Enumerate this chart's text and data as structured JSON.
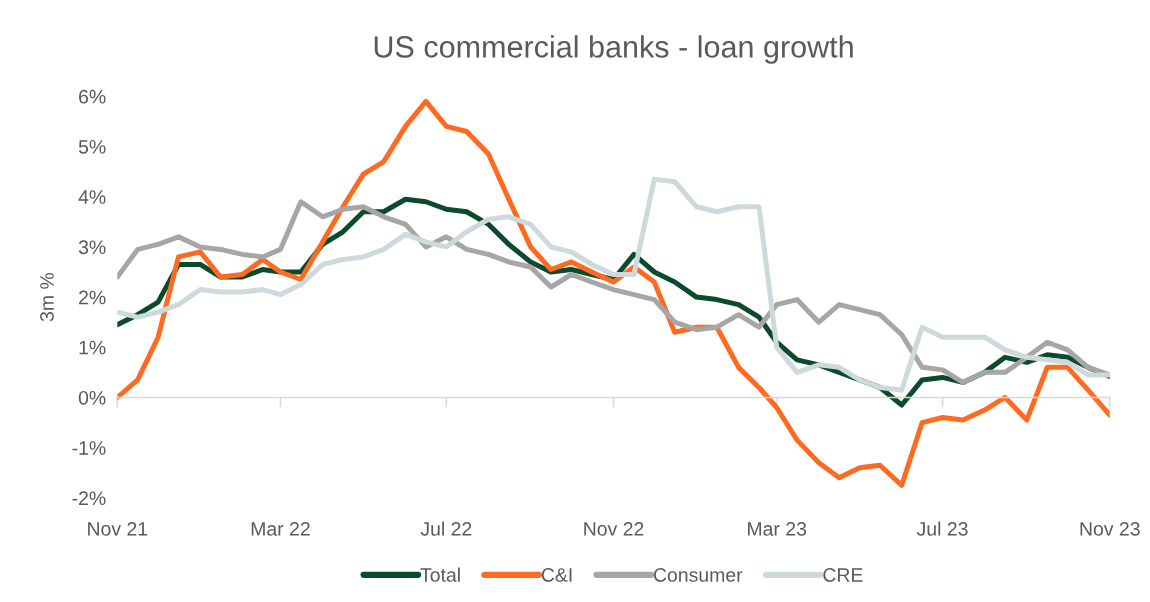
{
  "chart_data": {
    "type": "line",
    "title": "US commercial banks - loan growth",
    "ylabel": "3m %",
    "x": [
      "2021-11-01",
      "2021-11-16",
      "2021-12-01",
      "2021-12-16",
      "2022-01-01",
      "2022-01-16",
      "2022-02-01",
      "2022-02-16",
      "2022-03-01",
      "2022-03-16",
      "2022-04-01",
      "2022-04-16",
      "2022-05-01",
      "2022-05-16",
      "2022-06-01",
      "2022-06-16",
      "2022-07-01",
      "2022-07-16",
      "2022-08-01",
      "2022-08-16",
      "2022-09-01",
      "2022-09-16",
      "2022-10-01",
      "2022-10-16",
      "2022-11-01",
      "2022-11-16",
      "2022-12-01",
      "2022-12-16",
      "2023-01-01",
      "2023-01-16",
      "2023-02-01",
      "2023-02-16",
      "2023-03-01",
      "2023-03-16",
      "2023-04-01",
      "2023-04-16",
      "2023-05-01",
      "2023-05-16",
      "2023-06-01",
      "2023-06-16",
      "2023-07-01",
      "2023-07-16",
      "2023-08-01",
      "2023-08-16",
      "2023-09-01",
      "2023-09-16",
      "2023-10-01",
      "2023-10-16",
      "2023-11-01"
    ],
    "series": [
      {
        "name": "Total",
        "color": "#0b4a2a",
        "values": [
          1.45,
          1.65,
          1.9,
          2.65,
          2.65,
          2.4,
          2.4,
          2.55,
          2.5,
          2.5,
          3.05,
          3.3,
          3.7,
          3.7,
          3.95,
          3.9,
          3.75,
          3.7,
          3.45,
          3.05,
          2.7,
          2.5,
          2.55,
          2.45,
          2.35,
          2.85,
          2.5,
          2.3,
          2.0,
          1.95,
          1.85,
          1.6,
          1.1,
          0.75,
          0.65,
          0.5,
          0.35,
          0.2,
          -0.15,
          0.35,
          0.4,
          0.3,
          0.5,
          0.8,
          0.7,
          0.85,
          0.8,
          0.6,
          0.42
        ]
      },
      {
        "name": "C&I",
        "color": "#ff6a21",
        "values": [
          0.0,
          0.35,
          1.2,
          2.8,
          2.9,
          2.4,
          2.45,
          2.75,
          2.5,
          2.35,
          3.1,
          3.8,
          4.45,
          4.7,
          5.4,
          5.9,
          5.4,
          5.3,
          4.85,
          3.95,
          3.0,
          2.55,
          2.7,
          2.5,
          2.3,
          2.6,
          2.3,
          1.3,
          1.4,
          1.4,
          0.6,
          0.2,
          -0.2,
          -0.85,
          -1.3,
          -1.6,
          -1.4,
          -1.35,
          -1.75,
          -0.5,
          -0.4,
          -0.45,
          -0.25,
          0.0,
          -0.45,
          0.6,
          0.6,
          0.15,
          -0.35
        ]
      },
      {
        "name": "Consumer",
        "color": "#a6a6a6",
        "values": [
          2.4,
          2.95,
          3.05,
          3.2,
          3.0,
          2.95,
          2.85,
          2.8,
          2.95,
          3.9,
          3.6,
          3.75,
          3.8,
          3.6,
          3.45,
          3.0,
          3.2,
          2.95,
          2.85,
          2.7,
          2.6,
          2.2,
          2.45,
          2.3,
          2.15,
          2.05,
          1.95,
          1.5,
          1.35,
          1.4,
          1.65,
          1.4,
          1.85,
          1.95,
          1.5,
          1.85,
          1.75,
          1.65,
          1.25,
          0.6,
          0.55,
          0.3,
          0.5,
          0.5,
          0.8,
          1.1,
          0.95,
          0.6,
          0.45
        ]
      },
      {
        "name": "CRE",
        "color": "#cdd9dc",
        "values": [
          1.7,
          1.6,
          1.7,
          1.85,
          2.15,
          2.1,
          2.1,
          2.15,
          2.05,
          2.25,
          2.65,
          2.75,
          2.8,
          2.95,
          3.25,
          3.1,
          3.0,
          3.3,
          3.55,
          3.6,
          3.45,
          3.0,
          2.9,
          2.65,
          2.45,
          2.45,
          4.35,
          4.3,
          3.8,
          3.7,
          3.8,
          3.8,
          1.0,
          0.5,
          0.65,
          0.6,
          0.35,
          0.2,
          0.15,
          1.4,
          1.2,
          1.2,
          1.2,
          0.95,
          0.8,
          0.75,
          0.7,
          0.45,
          0.45
        ]
      }
    ],
    "xlim": [
      "2021-11-01",
      "2023-11-01"
    ],
    "xticks": [
      {
        "value": "2021-11-01",
        "label": "Nov 21"
      },
      {
        "value": "2022-03-01",
        "label": "Mar 22"
      },
      {
        "value": "2022-07-01",
        "label": "Jul 22"
      },
      {
        "value": "2022-11-01",
        "label": "Nov 22"
      },
      {
        "value": "2023-03-01",
        "label": "Mar 23"
      },
      {
        "value": "2023-07-01",
        "label": "Jul 23"
      },
      {
        "value": "2023-11-01",
        "label": "Nov 23"
      }
    ],
    "ylim": [
      -2,
      6
    ],
    "yticks": [
      {
        "value": -2,
        "label": "-2%"
      },
      {
        "value": -1,
        "label": "-1%"
      },
      {
        "value": 0,
        "label": "0%"
      },
      {
        "value": 1,
        "label": "1%"
      },
      {
        "value": 2,
        "label": "2%"
      },
      {
        "value": 3,
        "label": "3%"
      },
      {
        "value": 4,
        "label": "4%"
      },
      {
        "value": 5,
        "label": "5%"
      },
      {
        "value": 6,
        "label": "6%"
      }
    ],
    "legend": "bottom",
    "line_style": "solid",
    "marker": "none"
  }
}
